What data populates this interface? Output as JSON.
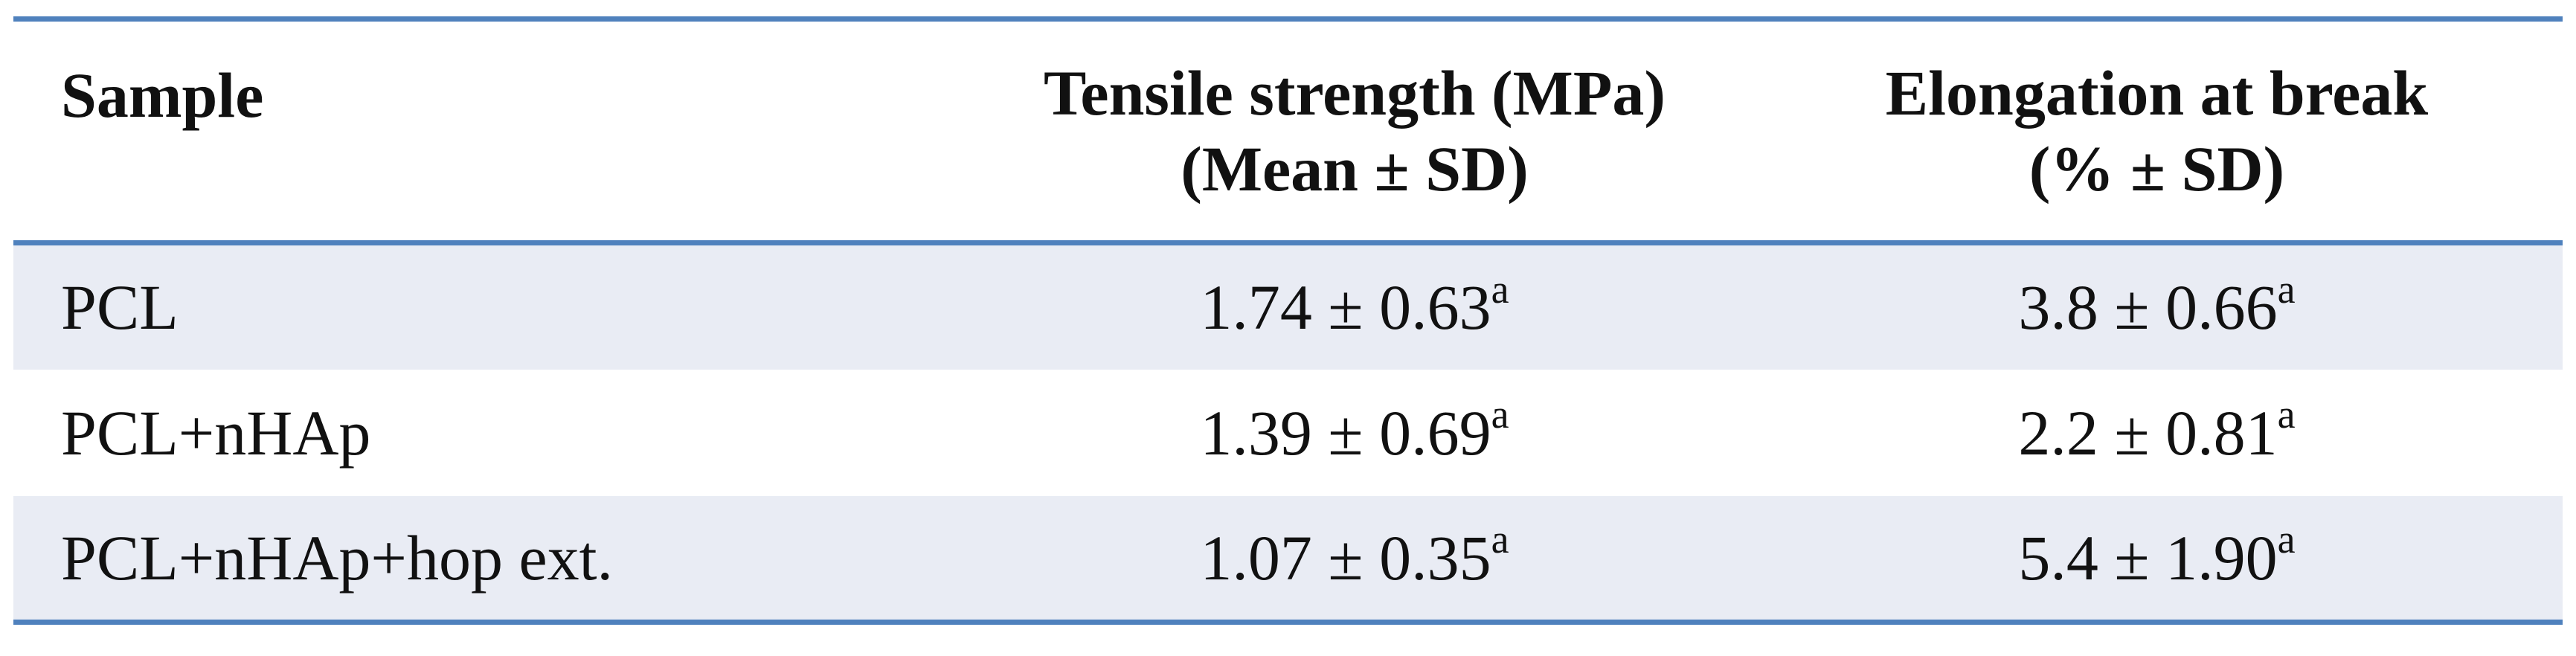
{
  "table": {
    "headers": {
      "sample": "Sample",
      "tensile_line1": "Tensile strength (MPa)",
      "tensile_line2": "(Mean ± SD)",
      "elong_line1": "Elongation at break",
      "elong_line2": "(% ± SD)"
    },
    "rows": [
      {
        "sample": "PCL",
        "tensile": "1.74 ± 0.63",
        "tensile_sup": "a",
        "elong": "3.8 ± 0.66",
        "elong_sup": "a"
      },
      {
        "sample": "PCL+nHAp",
        "tensile": "1.39 ± 0.69",
        "tensile_sup": "a",
        "elong": "2.2 ± 0.81",
        "elong_sup": "a"
      },
      {
        "sample": "PCL+nHAp+hop ext.",
        "tensile": "1.07 ± 0.35",
        "tensile_sup": "a",
        "elong": "5.4 ± 1.90",
        "elong_sup": "a"
      }
    ],
    "accent_color": "#4f81bd",
    "shaded_row_color": "#e9ecf4"
  }
}
